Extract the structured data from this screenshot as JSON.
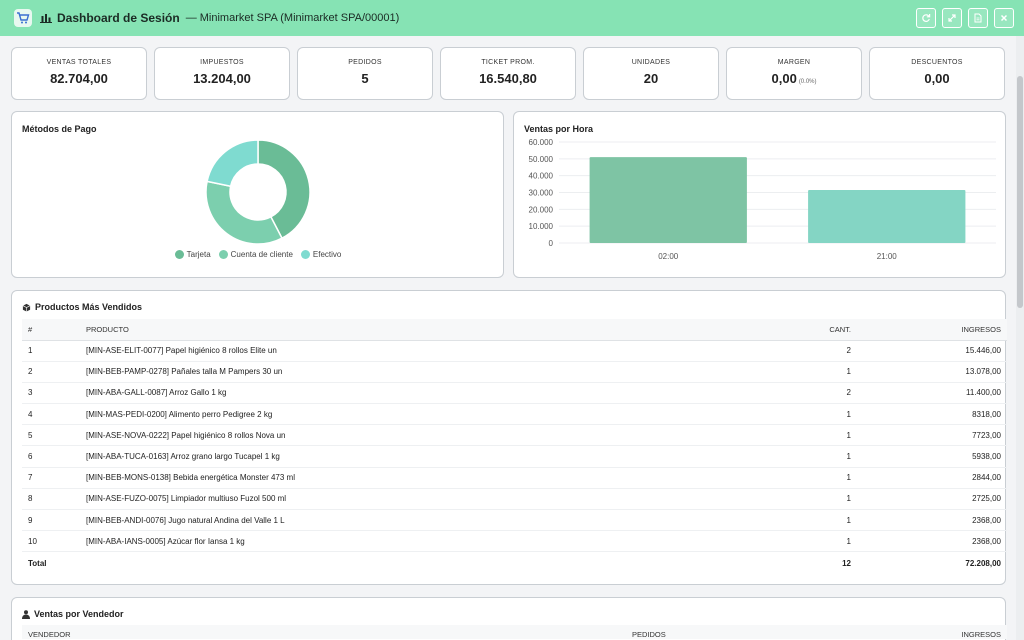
{
  "header": {
    "title": "Dashboard de Sesión",
    "subtitle": "— Minimarket SPA (Minimarket SPA/00001)"
  },
  "kpis": [
    {
      "label": "VENTAS TOTALES",
      "value": "82.704,00"
    },
    {
      "label": "IMPUESTOS",
      "value": "13.204,00"
    },
    {
      "label": "PEDIDOS",
      "value": "5"
    },
    {
      "label": "TICKET PROM.",
      "value": "16.540,80"
    },
    {
      "label": "UNIDADES",
      "value": "20"
    },
    {
      "label": "MARGEN",
      "value": "0,00",
      "extra": "(0.0%)"
    },
    {
      "label": "DESCUENTOS",
      "value": "0,00"
    }
  ],
  "payment_methods": {
    "title": "Métodos de Pago",
    "legend": [
      "Tarjeta",
      "Cuenta de cliente",
      "Efectivo"
    ]
  },
  "hourly_sales": {
    "title": "Ventas por Hora"
  },
  "colors": {
    "tarjeta": "#6abc96",
    "cuenta_cliente": "#7ccfae",
    "efectivo": "#7fdbd0",
    "bar_1": "#7ec4a4",
    "bar_2": "#84d5c4",
    "header": "#86e3b4"
  },
  "chart_data": [
    {
      "type": "pie",
      "labels": [
        "Tarjeta",
        "Cuenta de cliente",
        "Efectivo"
      ],
      "values": [
        15446,
        13078,
        7920
      ]
    },
    {
      "type": "bar",
      "categories": [
        "02:00",
        "21:00"
      ],
      "values": [
        51000,
        31500
      ],
      "ylim": [
        0,
        60000
      ],
      "yticks": [
        "0",
        "10.000",
        "20.000",
        "30.000",
        "40.000",
        "50.000",
        "60.000"
      ],
      "grid": true
    }
  ],
  "products": {
    "title": "Productos Más Vendidos",
    "columns": [
      "#",
      "PRODUCTO",
      "CANT.",
      "INGRESOS"
    ],
    "rows": [
      {
        "n": "1",
        "product": "[MIN-ASE-ELIT-0077] Papel higiénico 8 rollos Elite un",
        "qty": "2",
        "income": "15.446,00"
      },
      {
        "n": "2",
        "product": "[MIN-BEB-PAMP-0278] Pañales talla M Pampers 30 un",
        "qty": "1",
        "income": "13.078,00"
      },
      {
        "n": "3",
        "product": "[MIN-ABA-GALL-0087] Arroz Gallo 1 kg",
        "qty": "2",
        "income": "11.400,00"
      },
      {
        "n": "4",
        "product": "[MIN-MAS-PEDI-0200] Alimento perro Pedigree 2 kg",
        "qty": "1",
        "income": "8318,00"
      },
      {
        "n": "5",
        "product": "[MIN-ASE-NOVA-0222] Papel higiénico 8 rollos Nova un",
        "qty": "1",
        "income": "7723,00"
      },
      {
        "n": "6",
        "product": "[MIN-ABA-TUCA-0163] Arroz grano largo Tucapel 1 kg",
        "qty": "1",
        "income": "5938,00"
      },
      {
        "n": "7",
        "product": "[MIN-BEB-MONS-0138] Bebida energética Monster 473 ml",
        "qty": "1",
        "income": "2844,00"
      },
      {
        "n": "8",
        "product": "[MIN-ASE-FUZO-0075] Limpiador multiuso Fuzol 500 ml",
        "qty": "1",
        "income": "2725,00"
      },
      {
        "n": "9",
        "product": "[MIN-BEB-ANDI-0076] Jugo natural Andina del Valle 1 L",
        "qty": "1",
        "income": "2368,00"
      },
      {
        "n": "10",
        "product": "[MIN-ABA-IANS-0005] Azúcar flor Iansa 1 kg",
        "qty": "1",
        "income": "2368,00"
      }
    ],
    "total": {
      "label": "Total",
      "qty": "12",
      "income": "72.208,00"
    }
  },
  "sellers": {
    "title": "Ventas por Vendedor",
    "columns": [
      "VENDEDOR",
      "PEDIDOS",
      "INGRESOS"
    ]
  }
}
